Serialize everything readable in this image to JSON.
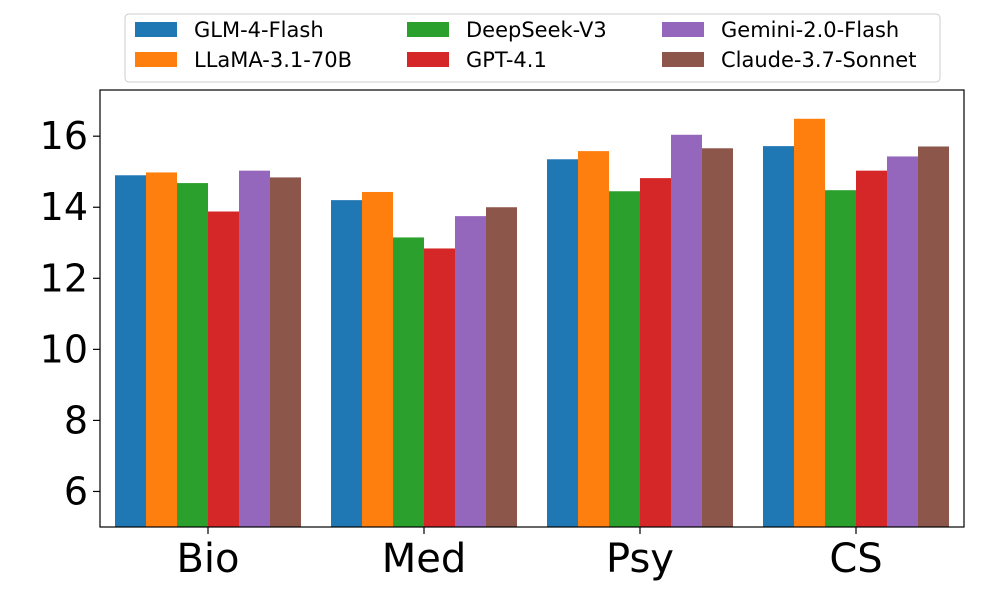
{
  "chart_data": {
    "type": "bar",
    "title": "",
    "xlabel": "",
    "ylabel": "",
    "categories": [
      "Bio",
      "Med",
      "Psy",
      "CS"
    ],
    "ylim": [
      5,
      17.3
    ],
    "yticks": [
      6,
      8,
      10,
      12,
      14,
      16
    ],
    "grid": false,
    "legend_position": "top",
    "series": [
      {
        "name": "GLM-4-Flash",
        "color": "#1f77b4",
        "values": [
          14.9,
          14.2,
          15.35,
          15.72
        ]
      },
      {
        "name": "LLaMA-3.1-70B",
        "color": "#ff7f0e",
        "values": [
          14.98,
          14.43,
          15.58,
          16.49
        ]
      },
      {
        "name": "DeepSeek-V3",
        "color": "#2ca02c",
        "values": [
          14.68,
          13.15,
          14.45,
          14.48
        ]
      },
      {
        "name": "GPT-4.1",
        "color": "#d62728",
        "values": [
          13.88,
          12.84,
          14.82,
          15.03
        ]
      },
      {
        "name": "Gemini-2.0-Flash",
        "color": "#9467bd",
        "values": [
          15.03,
          13.75,
          16.04,
          15.43
        ]
      },
      {
        "name": "Claude-3.7-Sonnet",
        "color": "#8c564b",
        "values": [
          14.84,
          14.0,
          15.66,
          15.71
        ]
      }
    ]
  }
}
